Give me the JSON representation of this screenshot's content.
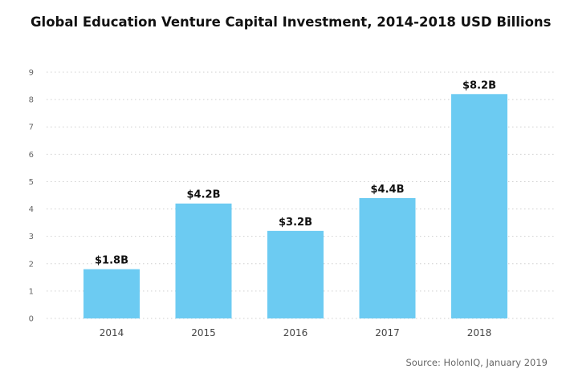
{
  "chart_data": {
    "type": "bar",
    "title": "Global Education Venture Capital Investment, 2014-2018 USD Billions",
    "categories": [
      "2014",
      "2015",
      "2016",
      "2017",
      "2018"
    ],
    "values": [
      1.8,
      4.2,
      3.2,
      4.4,
      8.2
    ],
    "data_labels": [
      "$1.8B",
      "$4.2B",
      "$3.2B",
      "$4.4B",
      "$8.2B"
    ],
    "yticks": [
      0,
      1,
      2,
      3,
      4,
      5,
      6,
      7,
      8,
      9
    ],
    "ylim": [
      0,
      9
    ],
    "grid": true,
    "xlabel": "",
    "ylabel": "",
    "bar_color": "#6ccbf2"
  },
  "source": "Source: HolonIQ,  January 2019"
}
